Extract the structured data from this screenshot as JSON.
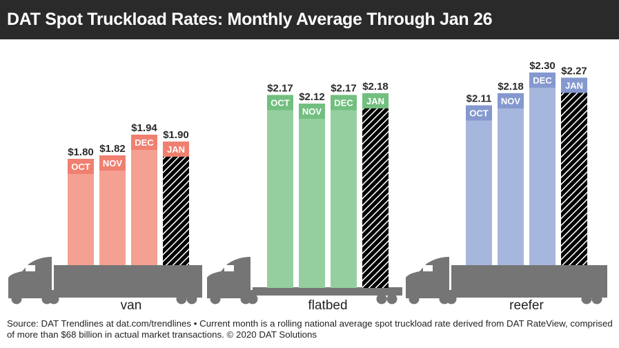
{
  "title": "DAT Spot Truckload Rates: Monthly Average Through Jan 26",
  "footer": "Source: DAT Trendlines at dat.com/trendlines • Current month is a rolling national average spot truckload rate derived from DAT RateView, comprised of more than $68 billion in actual market transactions. © 2020 DAT Solutions",
  "chart_data": {
    "type": "bar",
    "title": "DAT Spot Truckload Rates: Monthly Average Through Jan 26",
    "categories": [
      "OCT",
      "NOV",
      "DEC",
      "JAN"
    ],
    "note": "JAN bars hatched (current month, partial)",
    "groups": [
      {
        "name": "van",
        "values": [
          1.8,
          1.82,
          1.94,
          1.9
        ],
        "labels": [
          "$1.80",
          "$1.82",
          "$1.94",
          "$1.90"
        ],
        "color": "#f4a092",
        "band_color": "#f08070"
      },
      {
        "name": "flatbed",
        "values": [
          2.17,
          2.12,
          2.17,
          2.18
        ],
        "labels": [
          "$2.17",
          "$2.12",
          "$2.17",
          "$2.18"
        ],
        "color": "#95cf9f",
        "band_color": "#72bf80"
      },
      {
        "name": "reefer",
        "values": [
          2.11,
          2.18,
          2.3,
          2.27
        ],
        "labels": [
          "$2.11",
          "$2.18",
          "$2.30",
          "$2.27"
        ],
        "color": "#a7b6dc",
        "band_color": "#8598cf"
      }
    ],
    "truck_color": "#757575"
  }
}
